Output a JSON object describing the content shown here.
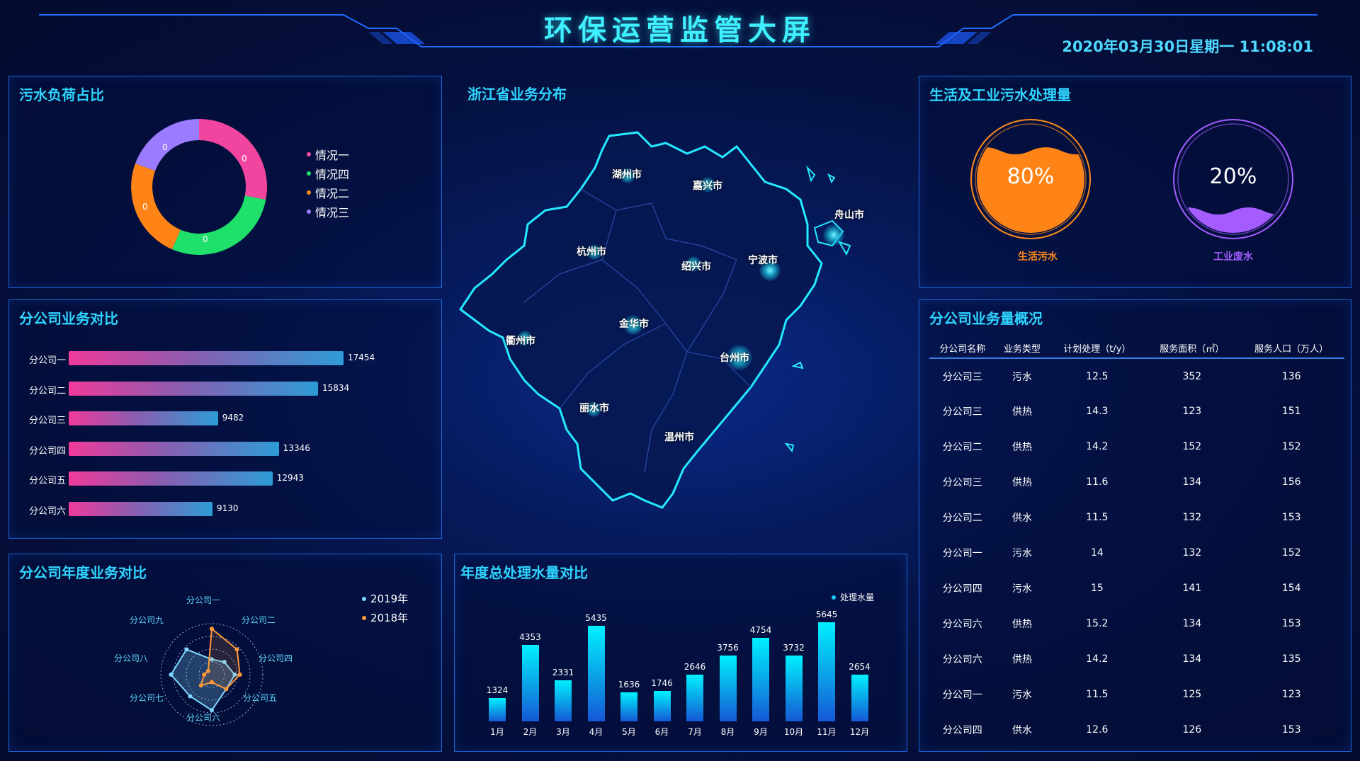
{
  "header": {
    "title": "环保运营监管大屏",
    "datetime": "2020年03月30日星期一 11:08:01"
  },
  "panels": {
    "load": {
      "title": "污水负荷占比",
      "legend": [
        {
          "label": "情况一",
          "color": "#ff4aa5"
        },
        {
          "label": "情况四",
          "color": "#22e06a"
        },
        {
          "label": "情况二",
          "color": "#ff8c1a"
        },
        {
          "label": "情况三",
          "color": "#9c7bff"
        }
      ],
      "slice_labels": [
        "0",
        "0",
        "0",
        "0"
      ]
    },
    "company_biz": {
      "title": "分公司业务对比",
      "rows": [
        {
          "label": "分公司一",
          "value": 17454
        },
        {
          "label": "分公司二",
          "value": 15834
        },
        {
          "label": "分公司三",
          "value": 9482
        },
        {
          "label": "分公司四",
          "value": 13346
        },
        {
          "label": "分公司五",
          "value": 12943
        },
        {
          "label": "分公司六",
          "value": 9130
        }
      ],
      "value_labels": [
        "17454",
        "15834",
        "9482",
        "13346",
        "12943",
        "9130"
      ]
    },
    "annual": {
      "title": "分公司年度业务对比",
      "axes": [
        "分公司一",
        "分公司二",
        "分公司四",
        "分公司五",
        "分公司六",
        "分公司七",
        "分公司八",
        "分公司九"
      ],
      "legend": [
        {
          "label": "2019年",
          "color": "#7fd7ff"
        },
        {
          "label": "2018年",
          "color": "#ff9a3a"
        }
      ]
    },
    "map": {
      "title": "浙江省业务分布",
      "cities": [
        "湖州市",
        "嘉兴市",
        "舟山市",
        "杭州市",
        "绍兴市",
        "宁波市",
        "金华市",
        "衢州市",
        "台州市",
        "丽水市",
        "温州市"
      ]
    },
    "water": {
      "title": "年度总处理水量对比",
      "legend": "处理水量",
      "months": [
        "1月",
        "2月",
        "3月",
        "4月",
        "5月",
        "6月",
        "7月",
        "8月",
        "9月",
        "10月",
        "11月",
        "12月"
      ],
      "value_labels": [
        "1324",
        "4353",
        "2331",
        "5435",
        "1636",
        "1746",
        "2646",
        "3756",
        "4754",
        "3732",
        "5645",
        "2654"
      ]
    },
    "treatment": {
      "title": "生活及工业污水处理量",
      "gauges": [
        {
          "pct": "80%",
          "label": "生活污水",
          "color": "#ff8c1a",
          "level": 0.8
        },
        {
          "pct": "20%",
          "label": "工业废水",
          "color": "#a45cff",
          "level": 0.2
        }
      ]
    },
    "overview": {
      "title": "分公司业务量概况",
      "headers": [
        "分公司名称",
        "业务类型",
        "计划处理（t/y）",
        "服务面积（㎡）",
        "服务人口（万人）"
      ],
      "rows": [
        [
          "分公司三",
          "污水",
          "12.5",
          "352",
          "136"
        ],
        [
          "分公司三",
          "供热",
          "14.3",
          "123",
          "151"
        ],
        [
          "分公司二",
          "供热",
          "14.2",
          "152",
          "152"
        ],
        [
          "分公司三",
          "供热",
          "11.6",
          "134",
          "156"
        ],
        [
          "分公司二",
          "供水",
          "11.5",
          "132",
          "153"
        ],
        [
          "分公司一",
          "污水",
          "14",
          "132",
          "152"
        ],
        [
          "分公司四",
          "污水",
          "15",
          "141",
          "154"
        ],
        [
          "分公司六",
          "供热",
          "15.2",
          "134",
          "153"
        ],
        [
          "分公司六",
          "供热",
          "14.2",
          "134",
          "135"
        ],
        [
          "分公司一",
          "污水",
          "11.5",
          "125",
          "123"
        ],
        [
          "分公司四",
          "供水",
          "12.6",
          "126",
          "153"
        ]
      ]
    }
  },
  "chart_data": [
    {
      "type": "pie",
      "labels": [
        "情况一",
        "情况四",
        "情况二",
        "情况三"
      ],
      "values": [
        0,
        0,
        0,
        0
      ]
    },
    {
      "type": "bar",
      "categories": [
        "分公司一",
        "分公司二",
        "分公司三",
        "分公司四",
        "分公司五",
        "分公司六"
      ],
      "values": [
        17454,
        15834,
        9482,
        13346,
        12943,
        9130
      ]
    },
    {
      "type": "bar",
      "categories": [
        "1月",
        "2月",
        "3月",
        "4月",
        "5月",
        "6月",
        "7月",
        "8月",
        "9月",
        "10月",
        "11月",
        "12月"
      ],
      "series": [
        {
          "name": "处理水量",
          "values": [
            1324,
            4353,
            2331,
            5435,
            1636,
            1746,
            2646,
            3756,
            4754,
            3732,
            5645,
            2654
          ]
        }
      ]
    },
    {
      "type": "radar",
      "categories": [
        "分公司一",
        "分公司二",
        "分公司四",
        "分公司五",
        "分公司六",
        "分公司七",
        "分公司八",
        "分公司九"
      ],
      "series": [
        {
          "name": "2019年",
          "values": [
            30,
            35,
            45,
            40,
            70,
            60,
            80,
            70
          ]
        },
        {
          "name": "2018年",
          "values": [
            90,
            70,
            55,
            40,
            15,
            30,
            15,
            10
          ]
        }
      ]
    }
  ]
}
